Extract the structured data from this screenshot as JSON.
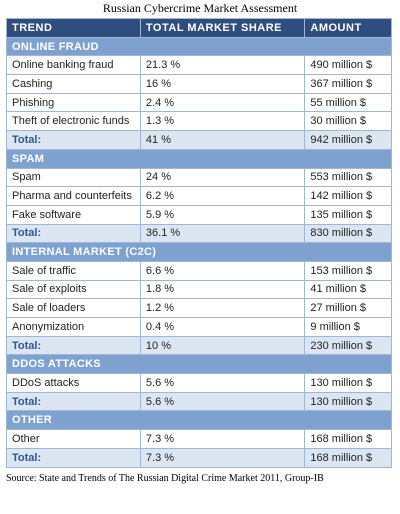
{
  "title": "Russian Cybercrime Market Assessment",
  "columns": [
    "TREND",
    "TOTAL MARKET SHARE",
    "AMOUNT"
  ],
  "sections": [
    {
      "name": "ONLINE FRAUD",
      "rows": [
        [
          "Online banking fraud",
          "21.3 %",
          "490 million $"
        ],
        [
          "Cashing",
          "16 %",
          "367 million $"
        ],
        [
          "Phishing",
          "2.4 %",
          "55 million $"
        ],
        [
          "Theft of electronic funds",
          "1.3 %",
          "30 million $"
        ]
      ],
      "total": [
        "Total:",
        "41 %",
        "942 million $"
      ]
    },
    {
      "name": "SPAM",
      "rows": [
        [
          "Spam",
          "24 %",
          "553 million $"
        ],
        [
          "Pharma and counterfeits",
          "6.2 %",
          "142 million $"
        ],
        [
          "Fake software",
          "5.9 %",
          "135 million $"
        ]
      ],
      "total": [
        "Total:",
        "36.1 %",
        "830 million $"
      ]
    },
    {
      "name": "INTERNAL MARKET (C2C)",
      "rows": [
        [
          "Sale of traffic",
          "6.6 %",
          "153 million $"
        ],
        [
          "Sale of exploits",
          "1.8 %",
          "41 million $"
        ],
        [
          "Sale of loaders",
          "1.2 %",
          "27 million $"
        ],
        [
          "Anonymization",
          "0.4 %",
          "9 million $"
        ]
      ],
      "total": [
        "Total:",
        "10 %",
        "230 million $"
      ]
    },
    {
      "name": "DDOS ATTACKS",
      "rows": [
        [
          "DDoS attacks",
          "5.6 %",
          "130 million $"
        ]
      ],
      "total": [
        "Total:",
        "5.6 %",
        "130 million $"
      ]
    },
    {
      "name": "OTHER",
      "rows": [
        [
          "Other",
          "7.3 %",
          "168 million $"
        ]
      ],
      "total": [
        "Total:",
        "7.3 %",
        "168 million $"
      ]
    }
  ],
  "source": "Source: State and Trends of The Russian Digital Crime Market 2011, Group-IB"
}
